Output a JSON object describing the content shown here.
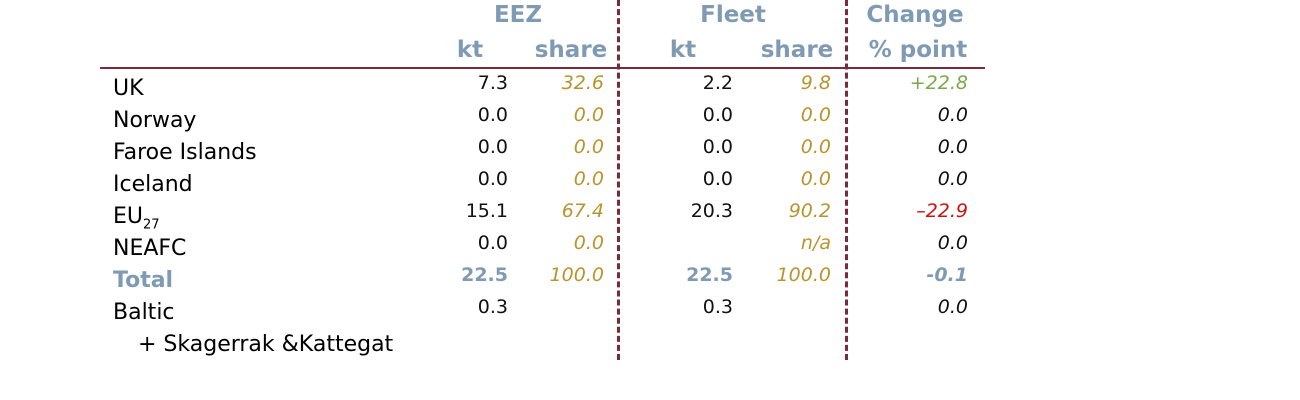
{
  "table": {
    "groups": [
      "EEZ",
      "Fleet",
      "Change"
    ],
    "subheaders": [
      "kt",
      "share",
      "kt",
      "share",
      "% point"
    ],
    "rows": [
      {
        "label": "UK",
        "cells": [
          "7.3",
          "32.6",
          "2.2",
          "9.8",
          "+22.8"
        ]
      },
      {
        "label": "Norway",
        "cells": [
          "0.0",
          "0.0",
          "0.0",
          "0.0",
          "0.0"
        ]
      },
      {
        "label": "Faroe Islands",
        "cells": [
          "0.0",
          "0.0",
          "0.0",
          "0.0",
          "0.0"
        ]
      },
      {
        "label": "Iceland",
        "cells": [
          "0.0",
          "0.0",
          "0.0",
          "0.0",
          "0.0"
        ]
      },
      {
        "label": "EU",
        "label_sub": "27",
        "cells": [
          "15.1",
          "67.4",
          "20.3",
          "90.2",
          "–22.9"
        ]
      },
      {
        "label": "NEAFC",
        "cells": [
          "0.0",
          "0.0",
          null,
          "n/a",
          "0.0"
        ]
      },
      {
        "label": "Total",
        "total": true,
        "cells": [
          "22.5",
          "100.0",
          "22.5",
          "100.0",
          "-0.1"
        ]
      },
      {
        "label": "Baltic",
        "sublabel": "+ Skagerrak &Kattegat",
        "cells": [
          "0.3",
          null,
          "0.3",
          null,
          "0.0"
        ]
      }
    ],
    "colors": {
      "header": "#7f9ab3",
      "share": "#b8942f",
      "positive": "#7aa84a",
      "negative": "#cc1111",
      "rule": "#7a2a3a"
    }
  }
}
